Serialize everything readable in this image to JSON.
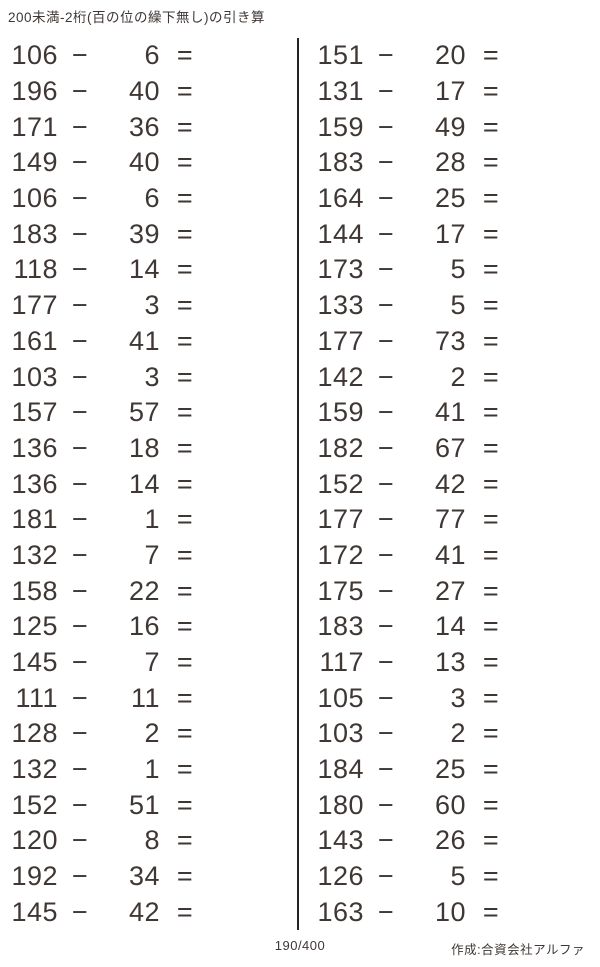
{
  "title": "200未満-2桁(百の位の繰下無し)の引き算",
  "glyphs": {
    "minus": "−",
    "equals": "="
  },
  "problems": {
    "left": [
      {
        "minuend": "106",
        "subtrahend": "6"
      },
      {
        "minuend": "196",
        "subtrahend": "40"
      },
      {
        "minuend": "171",
        "subtrahend": "36"
      },
      {
        "minuend": "149",
        "subtrahend": "40"
      },
      {
        "minuend": "106",
        "subtrahend": "6"
      },
      {
        "minuend": "183",
        "subtrahend": "39"
      },
      {
        "minuend": "118",
        "subtrahend": "14"
      },
      {
        "minuend": "177",
        "subtrahend": "3"
      },
      {
        "minuend": "161",
        "subtrahend": "41"
      },
      {
        "minuend": "103",
        "subtrahend": "3"
      },
      {
        "minuend": "157",
        "subtrahend": "57"
      },
      {
        "minuend": "136",
        "subtrahend": "18"
      },
      {
        "minuend": "136",
        "subtrahend": "14"
      },
      {
        "minuend": "181",
        "subtrahend": "1"
      },
      {
        "minuend": "132",
        "subtrahend": "7"
      },
      {
        "minuend": "158",
        "subtrahend": "22"
      },
      {
        "minuend": "125",
        "subtrahend": "16"
      },
      {
        "minuend": "145",
        "subtrahend": "7"
      },
      {
        "minuend": "111",
        "subtrahend": "11"
      },
      {
        "minuend": "128",
        "subtrahend": "2"
      },
      {
        "minuend": "132",
        "subtrahend": "1"
      },
      {
        "minuend": "152",
        "subtrahend": "51"
      },
      {
        "minuend": "120",
        "subtrahend": "8"
      },
      {
        "minuend": "192",
        "subtrahend": "34"
      },
      {
        "minuend": "145",
        "subtrahend": "42"
      }
    ],
    "right": [
      {
        "minuend": "151",
        "subtrahend": "20"
      },
      {
        "minuend": "131",
        "subtrahend": "17"
      },
      {
        "minuend": "159",
        "subtrahend": "49"
      },
      {
        "minuend": "183",
        "subtrahend": "28"
      },
      {
        "minuend": "164",
        "subtrahend": "25"
      },
      {
        "minuend": "144",
        "subtrahend": "17"
      },
      {
        "minuend": "173",
        "subtrahend": "5"
      },
      {
        "minuend": "133",
        "subtrahend": "5"
      },
      {
        "minuend": "177",
        "subtrahend": "73"
      },
      {
        "minuend": "142",
        "subtrahend": "2"
      },
      {
        "minuend": "159",
        "subtrahend": "41"
      },
      {
        "minuend": "182",
        "subtrahend": "67"
      },
      {
        "minuend": "152",
        "subtrahend": "42"
      },
      {
        "minuend": "177",
        "subtrahend": "77"
      },
      {
        "minuend": "172",
        "subtrahend": "41"
      },
      {
        "minuend": "175",
        "subtrahend": "27"
      },
      {
        "minuend": "183",
        "subtrahend": "14"
      },
      {
        "minuend": "117",
        "subtrahend": "13"
      },
      {
        "minuend": "105",
        "subtrahend": "3"
      },
      {
        "minuend": "103",
        "subtrahend": "2"
      },
      {
        "minuend": "184",
        "subtrahend": "25"
      },
      {
        "minuend": "180",
        "subtrahend": "60"
      },
      {
        "minuend": "143",
        "subtrahend": "26"
      },
      {
        "minuend": "126",
        "subtrahend": "5"
      },
      {
        "minuend": "163",
        "subtrahend": "10"
      }
    ]
  },
  "footer": {
    "page": "190/400",
    "credit": "作成:合資会社アルファ"
  },
  "colors": {
    "text": "#3e3734",
    "background": "#ffffff",
    "divider": "#26201e"
  }
}
